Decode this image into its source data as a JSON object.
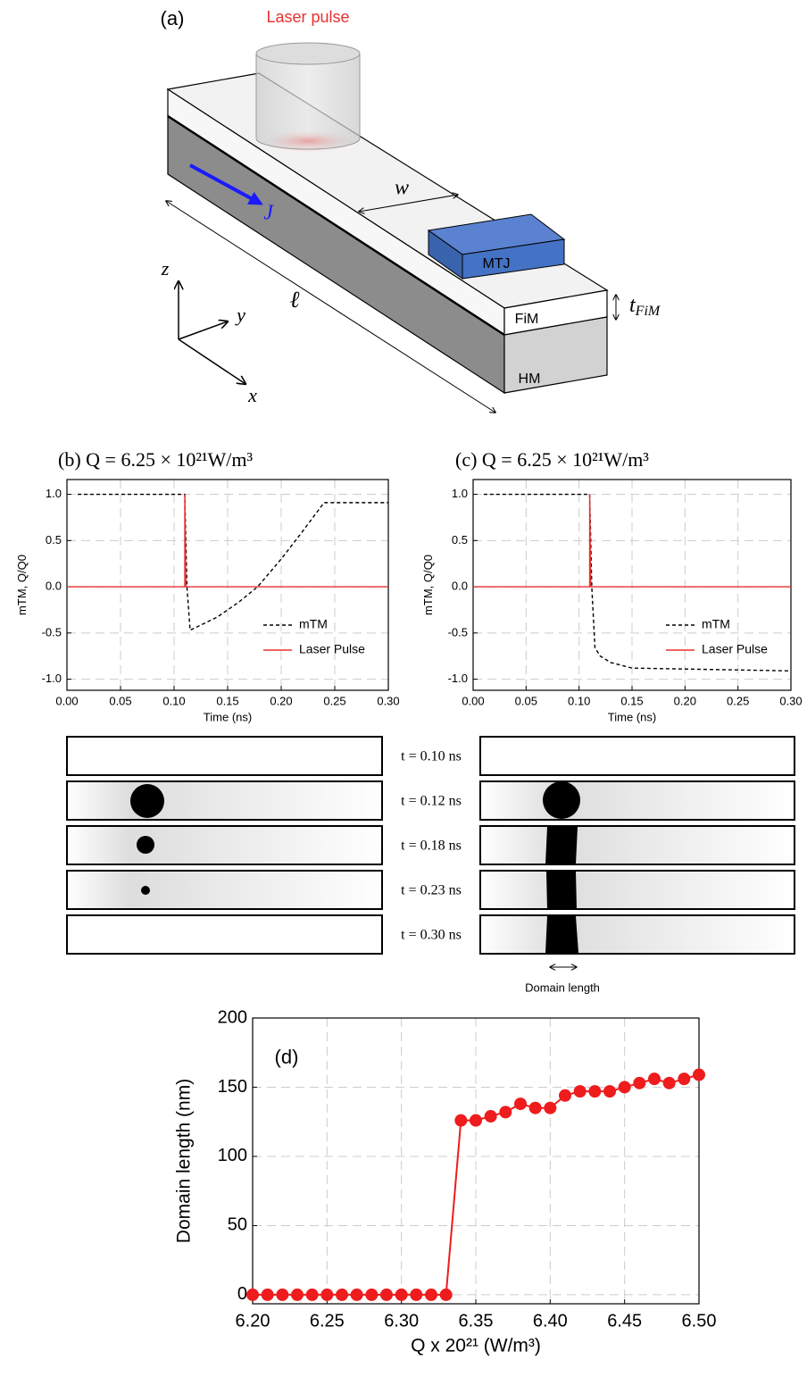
{
  "diagram": {
    "panel_label": "(a)",
    "laser_label": "Laser pulse",
    "width_label": "w",
    "current_label": "J⃗",
    "mtj_label": "MTJ",
    "fim_label": "FiM",
    "hm_label": "HM",
    "thickness_symbol": "t",
    "thickness_subscript": "FiM",
    "length_label": "ℓ",
    "axis_z": "z",
    "axis_y": "y",
    "axis_x": "x"
  },
  "chart_data": [
    {
      "type": "line",
      "title": "(b)  Q = 6.25 × 10²¹W/m³",
      "x_label": "Time (ns)",
      "y_label": "mTM, Q/Q0",
      "xlim": [
        0,
        0.3
      ],
      "ylim": [
        -1.12,
        1.16
      ],
      "xticks": [
        {
          "value": 0,
          "label": "0.00"
        },
        0.05,
        {
          "value": 0.1,
          "label": "0.10"
        },
        0.15,
        {
          "value": 0.2,
          "label": "0.20"
        },
        0.25,
        {
          "value": 0.3,
          "label": "0.30"
        }
      ],
      "yticks": [
        {
          "value": -1,
          "label": "-1.0"
        },
        -0.5,
        {
          "value": 0,
          "label": "0.0"
        },
        0.5,
        {
          "value": 1,
          "label": "1.0"
        }
      ],
      "grid": true,
      "legend": "lower right",
      "series": [
        {
          "name": "mTM",
          "color": "#000000",
          "dash": true,
          "x": [
            0.01,
            0.11,
            0.112,
            0.115,
            0.14,
            0.16,
            0.178,
            0.2,
            0.22,
            0.24,
            0.3
          ],
          "values": [
            1,
            1,
            0,
            -0.47,
            -0.33,
            -0.17,
            0,
            0.3,
            0.6,
            0.91,
            0.91
          ]
        },
        {
          "name": "Laser Pulse",
          "color": "#e8312f",
          "dash": false,
          "x": [
            0,
            0.11,
            0.11,
            0.111,
            0.3
          ],
          "values": [
            0,
            0,
            1,
            0,
            0
          ]
        }
      ]
    },
    {
      "type": "line",
      "title": "(c)  Q = 6.25 × 10²¹W/m³",
      "x_label": "Time (ns)",
      "y_label": "mTM, Q/Q0",
      "xlim": [
        0,
        0.3
      ],
      "ylim": [
        -1.12,
        1.16
      ],
      "xticks": [
        {
          "value": 0,
          "label": "0.00"
        },
        0.05,
        {
          "value": 0.1,
          "label": "0.10"
        },
        0.15,
        {
          "value": 0.2,
          "label": "0.20"
        },
        0.25,
        {
          "value": 0.3,
          "label": "0.30"
        }
      ],
      "yticks": [
        {
          "value": -1,
          "label": "-1.0"
        },
        -0.5,
        {
          "value": 0,
          "label": "0.0"
        },
        0.5,
        {
          "value": 1,
          "label": "1.0"
        }
      ],
      "grid": true,
      "legend": "lower right",
      "series": [
        {
          "name": "mTM",
          "color": "#000000",
          "dash": true,
          "x": [
            0.01,
            0.11,
            0.112,
            0.115,
            0.12,
            0.13,
            0.15,
            0.2,
            0.3
          ],
          "values": [
            1,
            1,
            0,
            -0.66,
            -0.75,
            -0.82,
            -0.88,
            -0.89,
            -0.91
          ]
        },
        {
          "name": "Laser Pulse",
          "color": "#e8312f",
          "dash": false,
          "x": [
            0,
            0.11,
            0.11,
            0.111,
            0.3
          ],
          "values": [
            0,
            0,
            1,
            0,
            0
          ]
        }
      ]
    },
    {
      "type": "line",
      "markers": true,
      "annotation": "(d)",
      "x_label": "Q x 20²¹ (W/m³)",
      "y_label": "Domain length (nm)",
      "xlim": [
        6.2,
        6.5
      ],
      "ylim": [
        -6.5,
        200
      ],
      "xticks": [
        {
          "value": 6.2,
          "label": "6.20"
        },
        6.25,
        {
          "value": 6.3,
          "label": "6.30"
        },
        6.35,
        {
          "value": 6.4,
          "label": "6.40"
        },
        6.45,
        {
          "value": 6.5,
          "label": "6.50"
        }
      ],
      "yticks": [
        0,
        50,
        100,
        150,
        200
      ],
      "grid": true,
      "series": [
        {
          "color": "#ee1c1c",
          "dash": false,
          "x": [
            6.2,
            6.21,
            6.22,
            6.23,
            6.24,
            6.25,
            6.26,
            6.27,
            6.28,
            6.29,
            6.3,
            6.31,
            6.32,
            6.33,
            6.34,
            6.35,
            6.36,
            6.37,
            6.38,
            6.39,
            6.4,
            6.41,
            6.42,
            6.43,
            6.44,
            6.45,
            6.46,
            6.47,
            6.48,
            6.49,
            6.5
          ],
          "values": [
            0,
            0,
            0,
            0,
            0,
            0,
            0,
            0,
            0,
            0,
            0,
            0,
            0,
            0,
            126,
            126,
            129,
            132,
            138,
            135,
            135,
            144,
            147,
            147,
            147,
            150,
            153,
            156,
            153,
            156,
            159
          ]
        }
      ]
    }
  ],
  "snapshots": {
    "times": [
      "t = 0.10 ns",
      "t = 0.12 ns",
      "t = 0.18 ns",
      "t = 0.23 ns",
      "t = 0.30 ns"
    ],
    "domain_length_label": "Domain length"
  }
}
